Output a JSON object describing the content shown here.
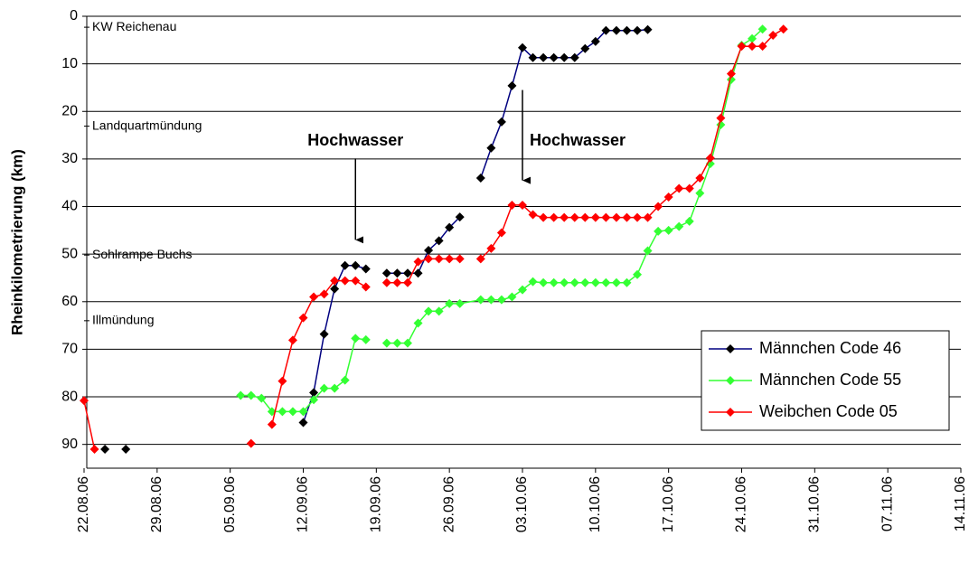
{
  "chart_data": {
    "type": "line",
    "y_label": "Rheinkilometrierung (km)",
    "xlim": [
      "22.08.06",
      "14.11.06"
    ],
    "xticks": [
      "22.08.06",
      "29.08.06",
      "05.09.06",
      "12.09.06",
      "19.09.06",
      "26.09.06",
      "03.10.06",
      "10.10.06",
      "17.10.06",
      "24.10.06",
      "31.10.06",
      "07.11.06",
      "14.11.06"
    ],
    "ylim": [
      0,
      95
    ],
    "yticks": [
      0,
      10,
      20,
      30,
      40,
      50,
      60,
      70,
      80,
      90
    ],
    "y_reversed": true,
    "grid": true,
    "legend": "lower right",
    "series": [
      {
        "name": "Männchen Code 46",
        "color": "#000080",
        "marker_color": "#000000",
        "x": [
          "24.08.06",
          null,
          "26.08.06",
          null,
          "12.09.06",
          "13.09.06",
          "14.09.06",
          "15.09.06",
          "16.09.06",
          "17.09.06",
          "18.09.06",
          null,
          "20.09.06",
          "21.09.06",
          "22.09.06",
          "23.09.06",
          "24.09.06",
          "25.09.06",
          "26.09.06",
          "27.09.06",
          null,
          "29.09.06",
          "30.09.06",
          "01.10.06",
          "02.10.06",
          "03.10.06",
          "04.10.06",
          "05.10.06",
          "06.10.06",
          "07.10.06",
          "08.10.06",
          "09.10.06",
          "10.10.06",
          "11.10.06",
          "12.10.06",
          "13.10.06",
          "14.10.06",
          "15.10.06"
        ],
        "values": [
          91,
          null,
          91,
          null,
          85.4,
          79.1,
          66.8,
          57.3,
          52.4,
          52.4,
          53.1,
          null,
          54,
          54,
          54,
          54,
          49.2,
          47.2,
          44.4,
          42.2,
          null,
          34,
          27.7,
          22.2,
          14.6,
          6.6,
          8.7,
          8.7,
          8.7,
          8.7,
          8.7,
          6.8,
          5.3,
          3,
          3,
          3,
          3,
          2.8
        ]
      },
      {
        "name": "Männchen Code 55",
        "color": "#33ff33",
        "marker_color": "#33ff33",
        "x": [
          "06.09.06",
          "07.09.06",
          "08.09.06",
          "09.09.06",
          "10.09.06",
          "11.09.06",
          "12.09.06",
          "13.09.06",
          "14.09.06",
          "15.09.06",
          "16.09.06",
          "17.09.06",
          "18.09.06",
          null,
          "20.09.06",
          "21.09.06",
          "22.09.06",
          "23.09.06",
          "24.09.06",
          "25.09.06",
          "26.09.06",
          "27.09.06",
          "29.09.06",
          "30.09.06",
          "01.10.06",
          "02.10.06",
          "03.10.06",
          "04.10.06",
          "05.10.06",
          "06.10.06",
          "07.10.06",
          "08.10.06",
          "09.10.06",
          "10.10.06",
          "11.10.06",
          "12.10.06",
          "13.10.06",
          "14.10.06",
          "15.10.06",
          "16.10.06",
          "17.10.06",
          "18.10.06",
          "19.10.06",
          "20.10.06",
          "21.10.06",
          "22.10.06",
          "23.10.06",
          "24.10.06",
          "25.10.06",
          "26.10.06"
        ],
        "values": [
          79.7,
          79.7,
          80.3,
          83.1,
          83.1,
          83.1,
          83.1,
          80.6,
          78.2,
          78.2,
          76.5,
          67.7,
          68,
          null,
          68.7,
          68.7,
          68.7,
          64.5,
          62,
          62,
          60.4,
          60.4,
          59.6,
          59.6,
          59.6,
          59,
          57.5,
          55.8,
          56,
          56,
          56,
          56,
          56,
          56,
          56,
          56,
          56,
          54.3,
          49.3,
          45.2,
          45,
          44.2,
          43.1,
          37.2,
          31,
          22.8,
          13.3,
          6.1,
          4.7,
          2.7
        ]
      },
      {
        "name": "Weibchen Code 05",
        "color": "#ff0000",
        "marker_color": "#ff0000",
        "x": [
          "22.08.06",
          "23.08.06",
          null,
          "07.09.06",
          null,
          "09.09.06",
          "10.09.06",
          "11.09.06",
          "12.09.06",
          "13.09.06",
          "14.09.06",
          "15.09.06",
          "16.09.06",
          "17.09.06",
          "18.09.06",
          null,
          "20.09.06",
          "21.09.06",
          "22.09.06",
          "23.09.06",
          "24.09.06",
          "25.09.06",
          "26.09.06",
          "27.09.06",
          null,
          "29.09.06",
          "30.09.06",
          "01.10.06",
          "02.10.06",
          "03.10.06",
          "04.10.06",
          "05.10.06",
          "06.10.06",
          "07.10.06",
          "08.10.06",
          "09.10.06",
          "10.10.06",
          "11.10.06",
          "12.10.06",
          "13.10.06",
          "14.10.06",
          "15.10.06",
          "16.10.06",
          "17.10.06",
          "18.10.06",
          "19.10.06",
          "20.10.06",
          "21.10.06",
          "22.10.06",
          "23.10.06",
          "24.10.06",
          "25.10.06",
          "26.10.06",
          "27.10.06",
          "28.10.06"
        ],
        "values": [
          80.8,
          91,
          null,
          89.8,
          null,
          85.8,
          76.7,
          68.1,
          63.4,
          59,
          58.4,
          55.6,
          55.6,
          55.6,
          56.9,
          null,
          56,
          56,
          56,
          51.6,
          51,
          51,
          51,
          51,
          null,
          51,
          48.8,
          45.5,
          39.7,
          39.7,
          41.7,
          42.3,
          42.3,
          42.3,
          42.3,
          42.3,
          42.3,
          42.3,
          42.3,
          42.3,
          42.3,
          42.3,
          40,
          38,
          36.2,
          36.2,
          34,
          29.8,
          21.4,
          12.1,
          6.3,
          6.3,
          6.3,
          4,
          2.7
        ]
      }
    ],
    "landmarks": [
      {
        "text": "KW Reichenau",
        "value": 2.3
      },
      {
        "text": "Landquartmündung",
        "value": 23.1
      },
      {
        "text": "Sohlrampe Buchs",
        "value": 50.2
      },
      {
        "text": "Illmündung",
        "value": 64
      }
    ],
    "annotations": [
      {
        "text": "Hochwasser",
        "x": "17.09.06",
        "y": 47
      },
      {
        "text": "Hochwasser",
        "x": "03.10.06",
        "y": 34.5
      }
    ]
  }
}
